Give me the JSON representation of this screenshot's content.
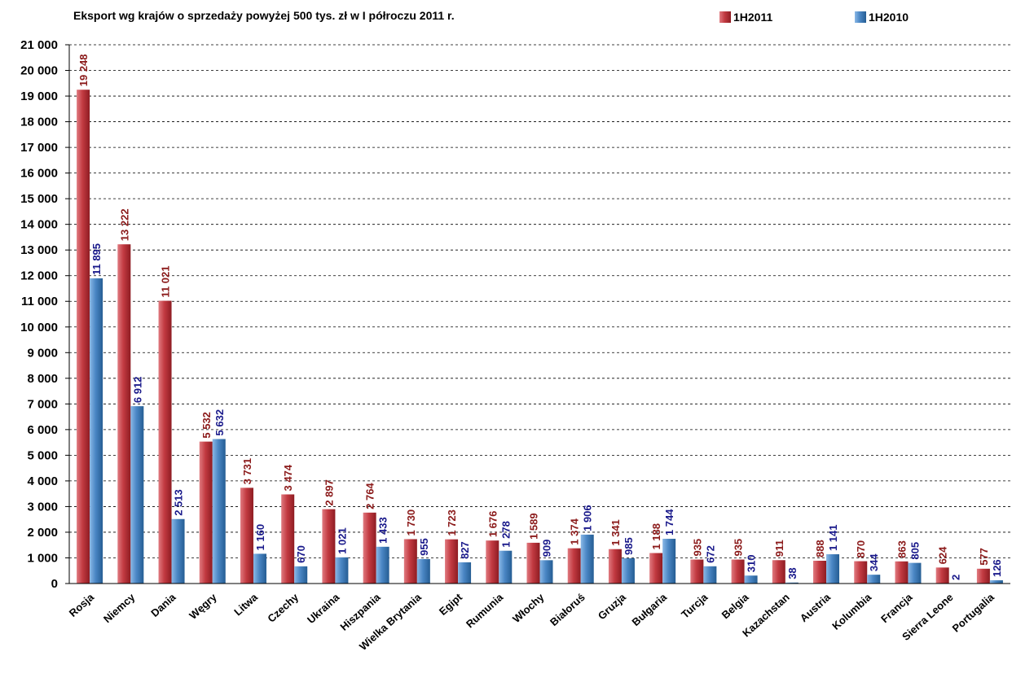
{
  "chart_data": {
    "type": "bar",
    "title": "Eksport wg krajów o sprzedaży powyżej 500 tys. zł w I półroczu 2011 r.",
    "categories": [
      "Rosja",
      "Niemcy",
      "Dania",
      "Węgry",
      "Litwa",
      "Czechy",
      "Ukraina",
      "Hiszpania",
      "Wielka Brytania",
      "Egipt",
      "Rumunia",
      "Włochy",
      "Białoruś",
      "Gruzja",
      "Bułgaria",
      "Turcja",
      "Belgia",
      "Kazachstan",
      "Austria",
      "Kolumbia",
      "Francja",
      "Sierra Leone",
      "Portugalia"
    ],
    "series": [
      {
        "name": "1H2011",
        "color": "#b02a30",
        "label_color": "#8b1a1a",
        "values": [
          19248,
          13222,
          11021,
          5532,
          3731,
          3474,
          2897,
          2764,
          1730,
          1723,
          1676,
          1589,
          1374,
          1341,
          1188,
          935,
          935,
          911,
          888,
          870,
          863,
          624,
          577
        ]
      },
      {
        "name": "1H2010",
        "color": "#3a78b5",
        "label_color": "#1a1a8b",
        "values": [
          11895,
          6912,
          2513,
          5632,
          1160,
          670,
          1021,
          1433,
          955,
          827,
          1278,
          909,
          1906,
          985,
          1744,
          672,
          310,
          38,
          1141,
          344,
          805,
          2,
          126
        ]
      }
    ],
    "data_labels": [
      [
        "19 248",
        "13 222",
        "11 021",
        "5 532",
        "3 731",
        "3 474",
        "2 897",
        "2 764",
        "1 730",
        "1 723",
        "1 676",
        "1 589",
        "1 374",
        "1 341",
        "1 188",
        "935",
        "935",
        "911",
        "888",
        "870",
        "863",
        "624",
        "577"
      ],
      [
        "11 895",
        "6 912",
        "2 513",
        "5 632",
        "1 160",
        "670",
        "1 021",
        "1 433",
        "955",
        "827",
        "1 278",
        "909",
        "1 906",
        "985",
        "1 744",
        "672",
        "310",
        "38",
        "1 141",
        "344",
        "805",
        "2",
        "126"
      ]
    ],
    "yticks": [
      0,
      1000,
      2000,
      3000,
      4000,
      5000,
      6000,
      7000,
      8000,
      9000,
      10000,
      11000,
      12000,
      13000,
      14000,
      15000,
      16000,
      17000,
      18000,
      19000,
      20000,
      21000
    ],
    "ytick_labels": [
      "0",
      "1 000",
      "2 000",
      "3 000",
      "4 000",
      "5 000",
      "6 000",
      "7 000",
      "8 000",
      "9 000",
      "10 000",
      "11 000",
      "12 000",
      "13 000",
      "14 000",
      "15 000",
      "16 000",
      "17 000",
      "18 000",
      "19 000",
      "20 000",
      "21 000"
    ],
    "ylim": [
      0,
      21000
    ],
    "xlabel": "",
    "ylabel": "",
    "grid": true,
    "legend_position": "top-right"
  }
}
